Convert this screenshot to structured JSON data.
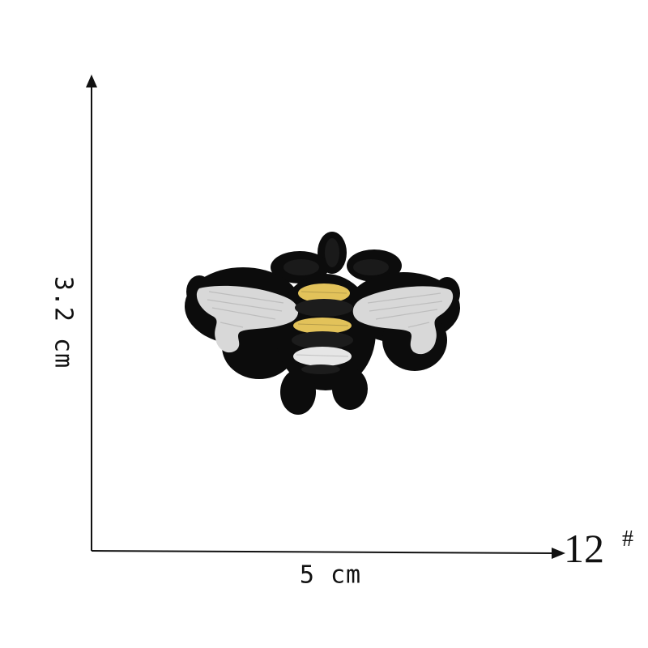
{
  "dimensions": {
    "height_label": "3.2 cm",
    "width_label": "5 cm",
    "model_number": "12",
    "model_suffix": "#"
  },
  "colors": {
    "patch_border": "#0c0c0c",
    "wing": "#d8d8d8",
    "bee_yellow": "#e2c25a",
    "bee_black": "#1c1c1c",
    "bee_white": "#e6e6e6",
    "axis": "#111111"
  }
}
